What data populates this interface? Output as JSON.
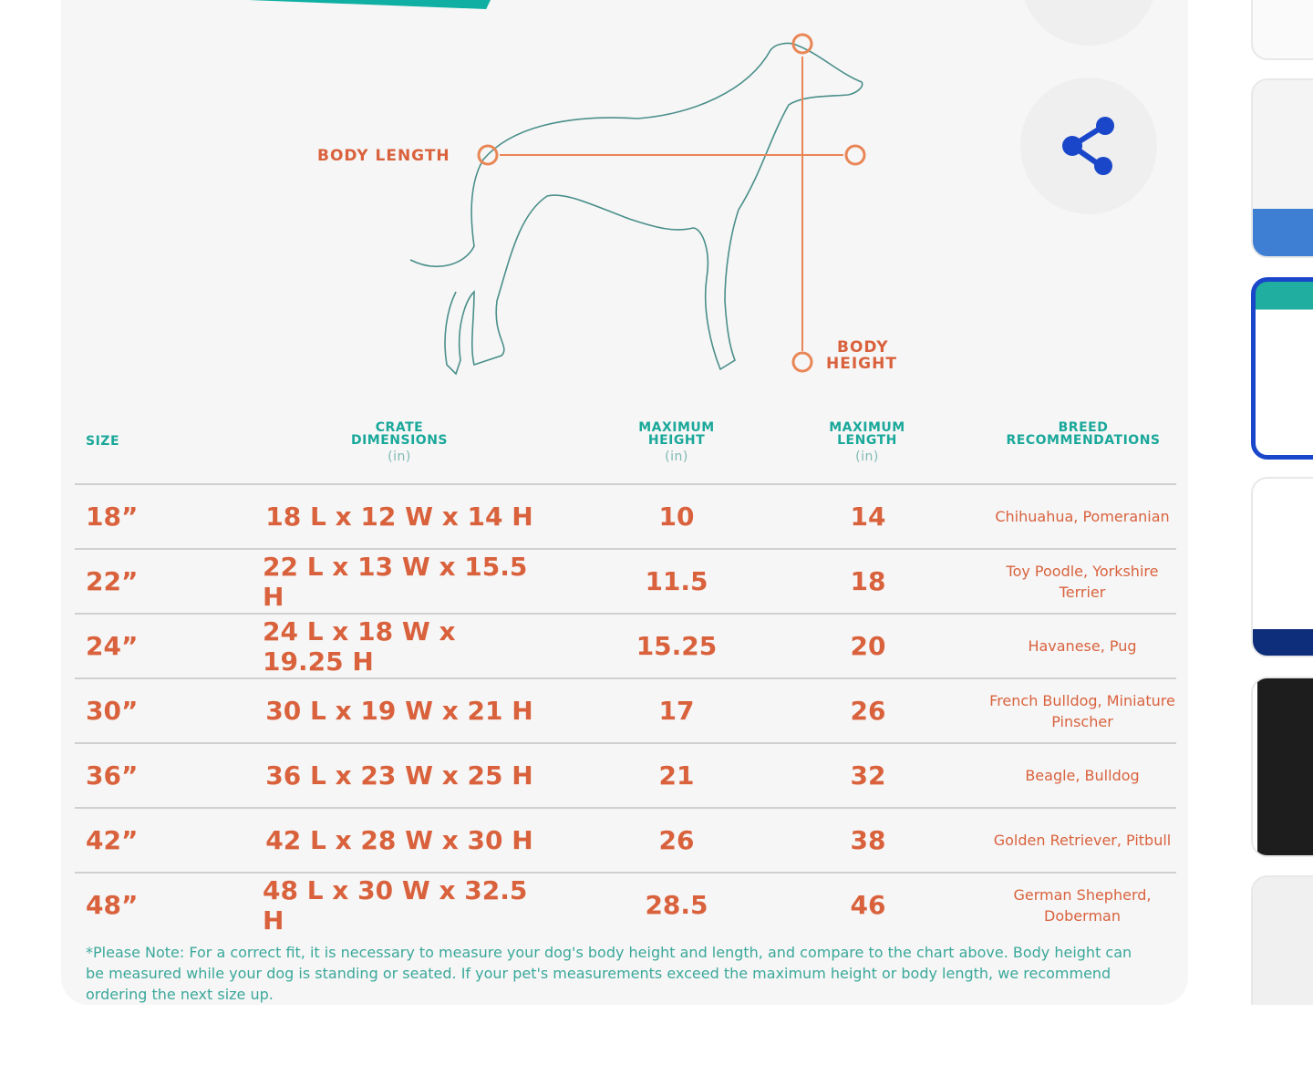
{
  "chart": {
    "labels": {
      "body_length": "BODY LENGTH",
      "body_height_1": "BODY",
      "body_height_2": "HEIGHT"
    },
    "headers": {
      "size": "SIZE",
      "dims": [
        "CRATE",
        "DIMENSIONS",
        "(in)"
      ],
      "max_height": [
        "MAXIMUM",
        "HEIGHT",
        "(in)"
      ],
      "max_length": [
        "MAXIMUM",
        "LENGTH",
        "(in)"
      ],
      "breed": [
        "BREED",
        "RECOMMENDATIONS"
      ]
    },
    "rows": [
      {
        "size": "18”",
        "dims": "18 L x 12 W x 14 H",
        "max_height": "10",
        "max_length": "14",
        "breed": "Chihuahua, Pomeranian"
      },
      {
        "size": "22”",
        "dims": "22 L x 13 W x 15.5 H",
        "max_height": "11.5",
        "max_length": "18",
        "breed": "Toy Poodle, Yorkshire Terrier"
      },
      {
        "size": "24”",
        "dims": "24 L x 18 W x 19.25 H",
        "max_height": "15.25",
        "max_length": "20",
        "breed": "Havanese, Pug"
      },
      {
        "size": "30”",
        "dims": "30 L x 19 W x 21 H",
        "max_height": "17",
        "max_length": "26",
        "breed": "French Bulldog, Miniature Pinscher"
      },
      {
        "size": "36”",
        "dims": "36 L x 23 W x 25 H",
        "max_height": "21",
        "max_length": "32",
        "breed": "Beagle, Bulldog"
      },
      {
        "size": "42”",
        "dims": "42 L x 28 W x 30 H",
        "max_height": "26",
        "max_length": "38",
        "breed": "Golden Retriever, Pitbull"
      },
      {
        "size": "48”",
        "dims": "48 L x 30 W x 32.5 H",
        "max_height": "28.5",
        "max_length": "46",
        "breed": "German Shepherd, Doberman"
      }
    ],
    "note": "*Please Note: For a correct fit, it is necessary to measure your dog's body height and length, and compare to the chart above. Body height can be measured while your dog is standing or seated. If your pet's measurements exceed the maximum height or body length, we recommend ordering the next size up."
  },
  "actions": {
    "top_icon": "heart-icon",
    "share_icon": "share-icon"
  },
  "thumbnails": {
    "count": 6,
    "selected_index": 2
  },
  "colors": {
    "accent_teal": "#1aa89a",
    "accent_orange": "#d9623d",
    "selection_blue": "#1a47c9"
  }
}
